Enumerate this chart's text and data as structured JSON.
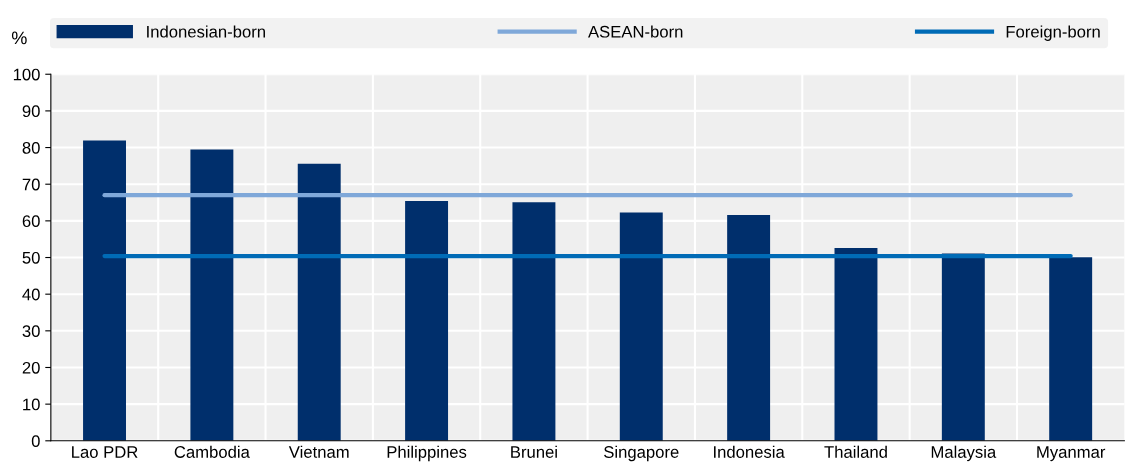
{
  "chart_data": {
    "type": "bar",
    "ylabel": "%",
    "categories": [
      "Lao PDR",
      "Cambodia",
      "Vietnam",
      "Philippines",
      "Brunei",
      "Singapore",
      "Indonesia",
      "Thailand",
      "Malaysia",
      "Myanmar"
    ],
    "series": [
      {
        "name": "Indonesian-born",
        "color": "#002f6c",
        "values": [
          81.9,
          79.5,
          75.6,
          65.4,
          65.1,
          62.3,
          61.6,
          52.6,
          51.1,
          50.1
        ]
      },
      {
        "name": "ASEAN-born",
        "type": "line",
        "color": "#7fa8d9",
        "values": [
          67,
          67,
          67,
          67,
          67,
          67,
          67,
          67,
          67,
          67
        ]
      },
      {
        "name": "Foreign-born",
        "type": "line",
        "color": "#006bb6",
        "values": [
          50.4,
          50.4,
          50.4,
          50.4,
          50.4,
          50.4,
          50.4,
          50.4,
          50.4,
          50.4
        ]
      }
    ],
    "ylim": [
      0,
      100
    ],
    "yticks": [
      0,
      10,
      20,
      30,
      40,
      50,
      60,
      70,
      80,
      90,
      100
    ],
    "grid": true,
    "legend": "top",
    "marker": "none",
    "line_style": "solid"
  }
}
